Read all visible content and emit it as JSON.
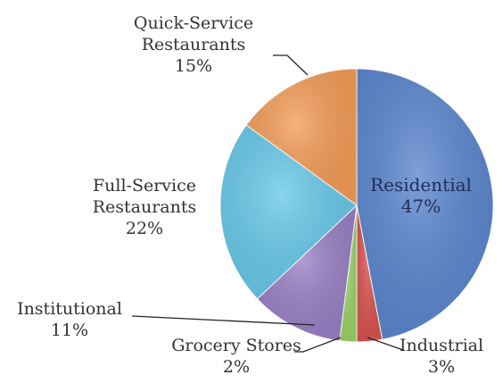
{
  "chart_data": {
    "type": "pie",
    "title": "",
    "slices": [
      {
        "label": "Residential",
        "value": 47,
        "value_label": "47%",
        "color": "#5b86cf"
      },
      {
        "label": "Industrial",
        "value": 3,
        "value_label": "3%",
        "color": "#d9534f"
      },
      {
        "label": "Grocery Stores",
        "value": 2,
        "value_label": "2%",
        "color": "#9bd267"
      },
      {
        "label": "Institutional",
        "value": 11,
        "value_label": "11%",
        "color": "#9a80c6"
      },
      {
        "label": "Full-Service\nRestaurants",
        "value": 22,
        "value_label": "22%",
        "color": "#68c9ea"
      },
      {
        "label": "Quick-Service\nRestaurants",
        "value": 15,
        "value_label": "15%",
        "color": "#f49c57"
      }
    ],
    "start": "12 o'clock",
    "direction": "clockwise",
    "legend": "none",
    "label_placement": "Residential inside; others outside with leader lines"
  }
}
